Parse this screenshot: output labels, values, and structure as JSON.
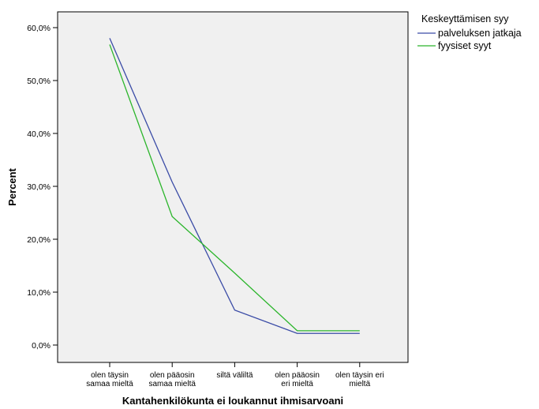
{
  "chart_data": {
    "type": "line",
    "xlabel": "Kantahenkilökunta ei loukannut ihmisarvoani",
    "ylabel": "Percent",
    "ylim": [
      0,
      63
    ],
    "yticks": [
      "0,0%",
      "10,0%",
      "20,0%",
      "30,0%",
      "40,0%",
      "50,0%",
      "60,0%"
    ],
    "categories": [
      [
        "olen täysin",
        "samaa mieltä"
      ],
      [
        "olen pääosin",
        "samaa mieltä"
      ],
      [
        "siltä väliltä"
      ],
      [
        "olen pääosin",
        "eri mieltä"
      ],
      [
        "olen täysin eri",
        "mieltä"
      ]
    ],
    "legend": {
      "title": "Keskeyttämisen syy",
      "position": "top-right"
    },
    "grid": false,
    "series": [
      {
        "name": "palveluksen jatkaja",
        "color": "#3a4ba6",
        "values": [
          58.0,
          30.8,
          6.6,
          2.2,
          2.2
        ]
      },
      {
        "name": "fyysiset syyt",
        "color": "#2bb52b",
        "values": [
          56.8,
          24.3,
          13.6,
          2.7,
          2.7
        ]
      }
    ]
  }
}
